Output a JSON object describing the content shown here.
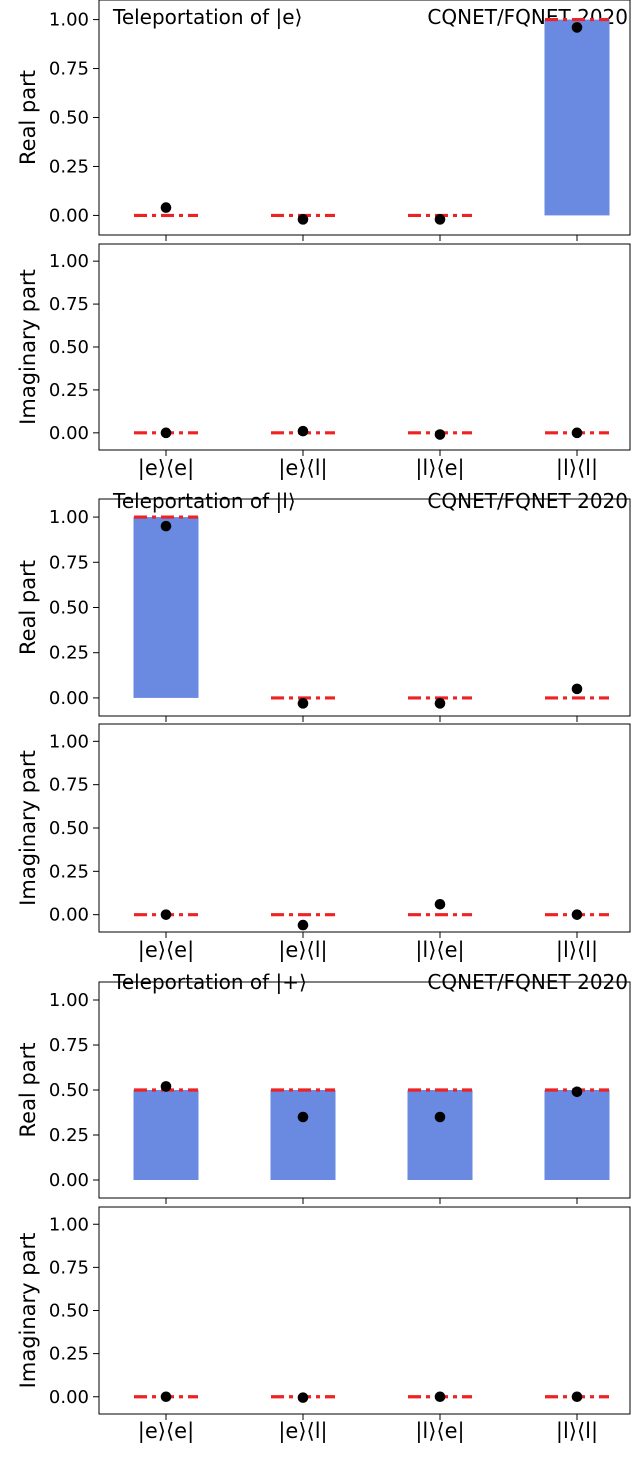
{
  "chart_data": [
    {
      "type": "bar",
      "title": "Teleportation of |e⟩",
      "credit": "CQNET/FQNET 2020",
      "categories": [
        "|e⟩⟨e|",
        "|e⟩⟨l|",
        "|l⟩⟨e|",
        "|l⟩⟨l|"
      ],
      "ylim": [
        -0.1,
        1.1
      ],
      "yticks": [
        "0.00",
        "0.25",
        "0.50",
        "0.75",
        "1.00"
      ],
      "panels": [
        {
          "ylabel": "Real part",
          "ideal": [
            0,
            0,
            0,
            1
          ],
          "measured": [
            0.04,
            -0.02,
            -0.02,
            0.96
          ]
        },
        {
          "ylabel": "Imaginary part",
          "ideal": [
            0,
            0,
            0,
            0
          ],
          "measured": [
            0.0,
            0.01,
            -0.01,
            0.0
          ]
        }
      ]
    },
    {
      "type": "bar",
      "title": "Teleportation of |l⟩",
      "credit": "CQNET/FQNET 2020",
      "categories": [
        "|e⟩⟨e|",
        "|e⟩⟨l|",
        "|l⟩⟨e|",
        "|l⟩⟨l|"
      ],
      "ylim": [
        -0.1,
        1.1
      ],
      "yticks": [
        "0.00",
        "0.25",
        "0.50",
        "0.75",
        "1.00"
      ],
      "panels": [
        {
          "ylabel": "Real part",
          "ideal": [
            1,
            0,
            0,
            0
          ],
          "measured": [
            0.95,
            -0.03,
            -0.03,
            0.05
          ]
        },
        {
          "ylabel": "Imaginary part",
          "ideal": [
            0,
            0,
            0,
            0
          ],
          "measured": [
            0.0,
            -0.06,
            0.06,
            0.0
          ]
        }
      ]
    },
    {
      "type": "bar",
      "title": "Teleportation of |+⟩",
      "credit": "CQNET/FQNET 2020",
      "categories": [
        "|e⟩⟨e|",
        "|e⟩⟨l|",
        "|l⟩⟨e|",
        "|l⟩⟨l|"
      ],
      "ylim": [
        -0.1,
        1.1
      ],
      "yticks": [
        "0.00",
        "0.25",
        "0.50",
        "0.75",
        "1.00"
      ],
      "panels": [
        {
          "ylabel": "Real part",
          "ideal": [
            0.5,
            0.5,
            0.5,
            0.5
          ],
          "measured": [
            0.52,
            0.35,
            0.35,
            0.49
          ]
        },
        {
          "ylabel": "Imaginary part",
          "ideal": [
            0,
            0,
            0,
            0
          ],
          "measured": [
            0.0,
            -0.005,
            0.0,
            0.0
          ]
        }
      ]
    }
  ],
  "colors": {
    "bar": "#6a89e0",
    "ideal_line": "#ee2222",
    "point": "#000000",
    "axis": "#000000"
  }
}
